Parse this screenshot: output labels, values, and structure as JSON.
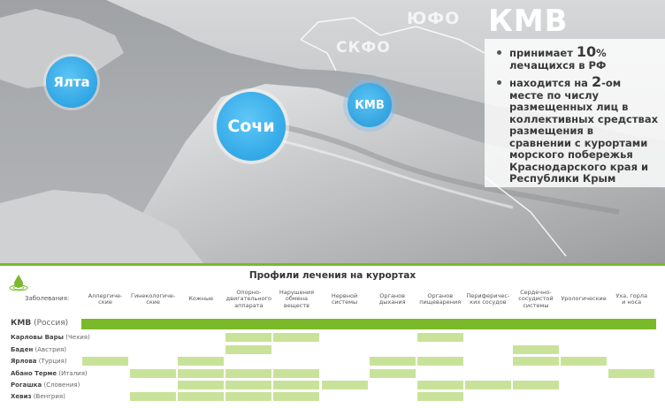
{
  "map": {
    "region_labels": {
      "yufo": "ЮФО",
      "skfo": "СКФО"
    },
    "title": "КМВ",
    "cities": {
      "yalta": "Ялта",
      "sochi": "Сочи",
      "kmv": "КМВ"
    },
    "info": {
      "bullet1": {
        "pre": "принимает ",
        "big": "10",
        "post_small": "% лечащихся в РФ"
      },
      "bullet2": {
        "pre": "находится на ",
        "big": "2",
        "post": "-ом месте по числу размещенных лиц в коллективных средствах размещения в сравнении с курортами морского побережья Краснодарского края и Республики Крым"
      }
    },
    "colors": {
      "sea": "#a8abae",
      "land": "#c7c9cb",
      "city": "#1f9be0",
      "border": "#ffffff"
    }
  },
  "table": {
    "title": "Профили лечения на курортах",
    "row_header_label": "Заболевания:",
    "icon": "water-drop-icon",
    "columns": [
      "Аллергиче-\nские",
      "Гинекологиче-\nские",
      "Кожные",
      "Опорно-\nдвигательного\nаппарата",
      "Нарушения\nобмена\nвеществ",
      "Нервной\nсистемы",
      "Органов\nдыхания",
      "Органов\nпищеварения",
      "Периферичес-\nких сосудов",
      "Сердечно-\nсосудистой\nсистемы",
      "Урологические",
      "Уха, горла\nи носа"
    ],
    "rows": [
      {
        "name": "КМВ",
        "country": "(Россия)",
        "cells": [
          1,
          1,
          1,
          1,
          1,
          1,
          1,
          1,
          1,
          1,
          1,
          1
        ]
      },
      {
        "name": "Карловы Вары",
        "country": "(Чехия)",
        "cells": [
          0,
          0,
          0,
          1,
          1,
          0,
          0,
          1,
          0,
          0,
          0,
          0
        ]
      },
      {
        "name": "Баден",
        "country": "(Австрия)",
        "cells": [
          0,
          0,
          0,
          1,
          0,
          0,
          0,
          0,
          0,
          1,
          0,
          0
        ]
      },
      {
        "name": "Ярлова",
        "country": "(Турция)",
        "cells": [
          1,
          0,
          1,
          0,
          0,
          0,
          1,
          1,
          0,
          1,
          1,
          0
        ]
      },
      {
        "name": "Абано Терме",
        "country": "(Италия)",
        "cells": [
          0,
          1,
          1,
          1,
          1,
          0,
          1,
          0,
          0,
          0,
          0,
          1
        ]
      },
      {
        "name": "Рогашка",
        "country": "(Словения)",
        "cells": [
          0,
          0,
          1,
          1,
          1,
          1,
          0,
          1,
          1,
          1,
          0,
          0
        ]
      },
      {
        "name": "Хевиз",
        "country": "(Венгрия)",
        "cells": [
          0,
          1,
          1,
          1,
          1,
          0,
          0,
          1,
          0,
          0,
          0,
          0
        ]
      }
    ],
    "colors": {
      "full": "#7ab929",
      "partial": "#c9e29a",
      "divider": "#7ab929"
    }
  }
}
